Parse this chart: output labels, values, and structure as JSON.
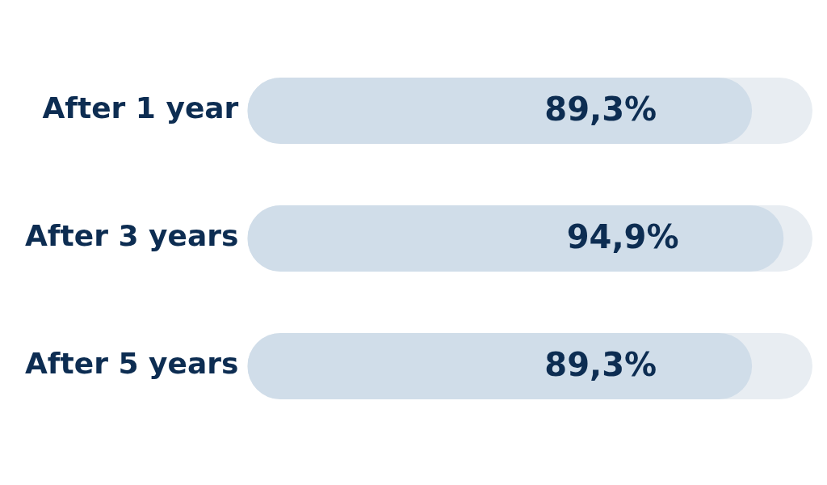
{
  "chart_data": {
    "type": "bar",
    "orientation": "horizontal",
    "categories": [
      "After 1 year",
      "After 3 years",
      "After 5 years"
    ],
    "values": [
      89.3,
      94.9,
      89.3
    ],
    "value_labels": [
      "89,3%",
      "94,9%",
      "89,3%"
    ],
    "color": "#d0dde9",
    "xlim": [
      0,
      100
    ],
    "tick_labels": "y",
    "grid": false,
    "legend": false
  }
}
